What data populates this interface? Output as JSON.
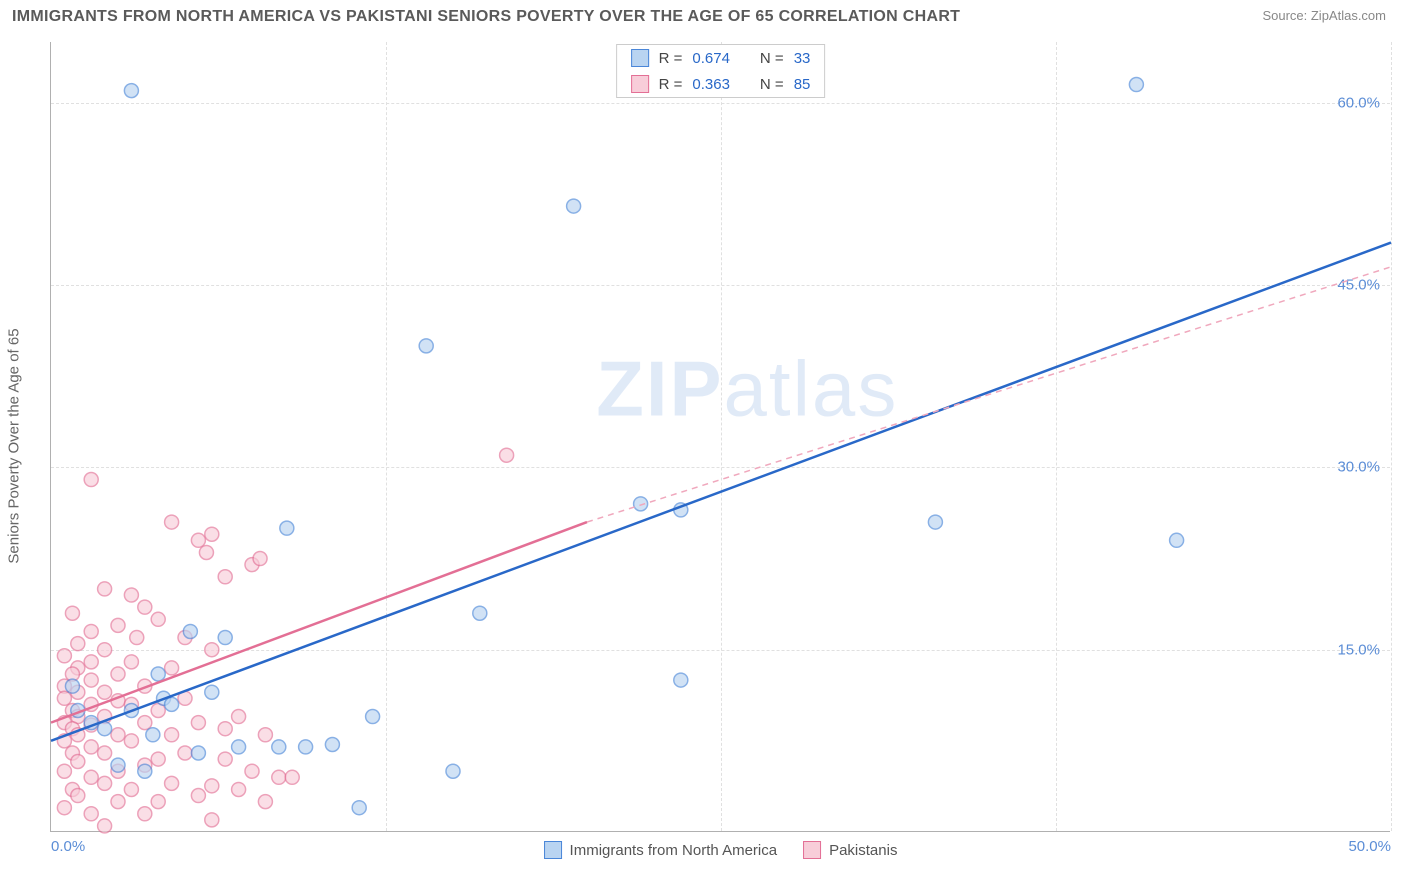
{
  "title": "IMMIGRANTS FROM NORTH AMERICA VS PAKISTANI SENIORS POVERTY OVER THE AGE OF 65 CORRELATION CHART",
  "source_prefix": "Source: ",
  "source_link": "ZipAtlas.com",
  "yaxis_label": "Seniors Poverty Over the Age of 65",
  "watermark_bold": "ZIP",
  "watermark_rest": "atlas",
  "chart": {
    "type": "scatter",
    "xlim": [
      0,
      50
    ],
    "ylim": [
      0,
      65
    ],
    "ytick_values": [
      15,
      30,
      45,
      60
    ],
    "ytick_labels": [
      "15.0%",
      "30.0%",
      "45.0%",
      "60.0%"
    ],
    "xtick_values": [
      0,
      50
    ],
    "xtick_labels": [
      "0.0%",
      "50.0%"
    ],
    "xgrid_values": [
      12.5,
      25,
      37.5,
      50
    ],
    "background_color": "#ffffff",
    "grid_color": "#e0e0e0",
    "colors": {
      "blue_fill": "#b9d4f1",
      "blue_stroke": "#4a86d8",
      "blue_line": "#2968c8",
      "pink_fill": "#f8cdd9",
      "pink_stroke": "#e36f95",
      "pink_line": "#e36f95",
      "pink_dash": "#f0a8bd",
      "tick_text": "#5b8dd6"
    },
    "marker_radius": 7,
    "line_width": 2.5,
    "series_blue": {
      "name": "Immigrants from North America",
      "R": "0.674",
      "N": "33",
      "trend": {
        "x1": 0,
        "y1": 7.5,
        "x2": 50,
        "y2": 48.5
      },
      "points": [
        [
          3.0,
          61.0
        ],
        [
          40.5,
          61.5
        ],
        [
          19.5,
          51.5
        ],
        [
          14.0,
          40.0
        ],
        [
          22.0,
          27.0
        ],
        [
          23.5,
          26.5
        ],
        [
          8.8,
          25.0
        ],
        [
          33.0,
          25.5
        ],
        [
          42.0,
          24.0
        ],
        [
          16.0,
          18.0
        ],
        [
          5.2,
          16.5
        ],
        [
          6.5,
          16.0
        ],
        [
          23.5,
          12.5
        ],
        [
          4.2,
          11.0
        ],
        [
          3.0,
          10.0
        ],
        [
          4.5,
          10.5
        ],
        [
          2.0,
          8.5
        ],
        [
          1.5,
          9.0
        ],
        [
          7.0,
          7.0
        ],
        [
          8.5,
          7.0
        ],
        [
          9.5,
          7.0
        ],
        [
          10.5,
          7.2
        ],
        [
          15.0,
          5.0
        ],
        [
          2.5,
          5.5
        ],
        [
          3.5,
          5.0
        ],
        [
          11.5,
          2.0
        ],
        [
          3.8,
          8.0
        ],
        [
          5.5,
          6.5
        ],
        [
          1.0,
          10.0
        ],
        [
          6.0,
          11.5
        ],
        [
          12.0,
          9.5
        ],
        [
          0.8,
          12.0
        ],
        [
          4.0,
          13.0
        ]
      ]
    },
    "series_pink": {
      "name": "Pakistanis",
      "R": "0.363",
      "N": "85",
      "trend_solid": {
        "x1": 0,
        "y1": 9.0,
        "x2": 20,
        "y2": 25.5
      },
      "trend_dash": {
        "x1": 20,
        "y1": 25.5,
        "x2": 50,
        "y2": 46.5
      },
      "points": [
        [
          1.5,
          29.0
        ],
        [
          17.0,
          31.0
        ],
        [
          5.5,
          24.0
        ],
        [
          6.0,
          24.5
        ],
        [
          4.5,
          25.5
        ],
        [
          5.8,
          23.0
        ],
        [
          7.5,
          22.0
        ],
        [
          7.8,
          22.5
        ],
        [
          6.5,
          21.0
        ],
        [
          2.0,
          20.0
        ],
        [
          3.0,
          19.5
        ],
        [
          3.5,
          18.5
        ],
        [
          0.8,
          18.0
        ],
        [
          4.0,
          17.5
        ],
        [
          2.5,
          17.0
        ],
        [
          1.5,
          16.5
        ],
        [
          5.0,
          16.0
        ],
        [
          3.2,
          16.0
        ],
        [
          1.0,
          15.5
        ],
        [
          2.0,
          15.0
        ],
        [
          6.0,
          15.0
        ],
        [
          0.5,
          14.5
        ],
        [
          1.5,
          14.0
        ],
        [
          3.0,
          14.0
        ],
        [
          1.0,
          13.5
        ],
        [
          4.5,
          13.5
        ],
        [
          0.8,
          13.0
        ],
        [
          2.5,
          13.0
        ],
        [
          1.5,
          12.5
        ],
        [
          0.5,
          12.0
        ],
        [
          3.5,
          12.0
        ],
        [
          2.0,
          11.5
        ],
        [
          1.0,
          11.5
        ],
        [
          5.0,
          11.0
        ],
        [
          0.5,
          11.0
        ],
        [
          2.5,
          10.8
        ],
        [
          1.5,
          10.5
        ],
        [
          3.0,
          10.5
        ],
        [
          0.8,
          10.0
        ],
        [
          4.0,
          10.0
        ],
        [
          1.0,
          9.5
        ],
        [
          2.0,
          9.5
        ],
        [
          0.5,
          9.0
        ],
        [
          5.5,
          9.0
        ],
        [
          3.5,
          9.0
        ],
        [
          1.5,
          8.8
        ],
        [
          6.5,
          8.5
        ],
        [
          0.8,
          8.5
        ],
        [
          2.5,
          8.0
        ],
        [
          4.5,
          8.0
        ],
        [
          1.0,
          8.0
        ],
        [
          8.0,
          8.0
        ],
        [
          7.0,
          9.5
        ],
        [
          0.5,
          7.5
        ],
        [
          3.0,
          7.5
        ],
        [
          1.5,
          7.0
        ],
        [
          2.0,
          6.5
        ],
        [
          5.0,
          6.5
        ],
        [
          0.8,
          6.5
        ],
        [
          4.0,
          6.0
        ],
        [
          6.5,
          6.0
        ],
        [
          1.0,
          5.8
        ],
        [
          3.5,
          5.5
        ],
        [
          2.5,
          5.0
        ],
        [
          7.5,
          5.0
        ],
        [
          0.5,
          5.0
        ],
        [
          8.5,
          4.5
        ],
        [
          1.5,
          4.5
        ],
        [
          4.5,
          4.0
        ],
        [
          2.0,
          4.0
        ],
        [
          6.0,
          3.8
        ],
        [
          3.0,
          3.5
        ],
        [
          0.8,
          3.5
        ],
        [
          5.5,
          3.0
        ],
        [
          1.0,
          3.0
        ],
        [
          9.0,
          4.5
        ],
        [
          7.0,
          3.5
        ],
        [
          2.5,
          2.5
        ],
        [
          4.0,
          2.5
        ],
        [
          0.5,
          2.0
        ],
        [
          8.0,
          2.5
        ],
        [
          3.5,
          1.5
        ],
        [
          1.5,
          1.5
        ],
        [
          6.0,
          1.0
        ],
        [
          2.0,
          0.5
        ]
      ]
    }
  },
  "legend_top": {
    "R_label": "R =",
    "N_label": "N ="
  },
  "legend_bottom": {
    "blue": "Immigrants from North America",
    "pink": "Pakistanis"
  }
}
